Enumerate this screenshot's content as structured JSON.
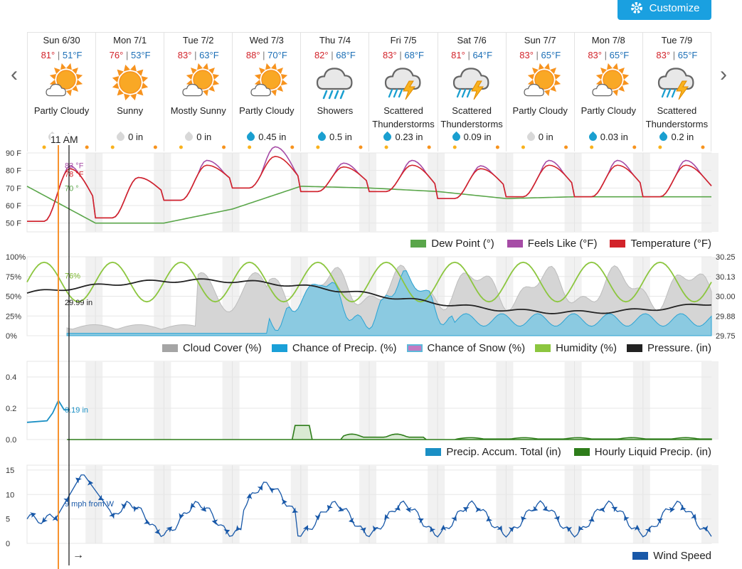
{
  "toolbar": {
    "customize_label": "Customize",
    "customize_icon": "gear-icon"
  },
  "nav": {
    "prev_glyph": "‹",
    "next_glyph": "›"
  },
  "days": [
    {
      "date": "Sun 6/30",
      "hi": "81°",
      "lo": "51°F",
      "icon": "partly-cloudy-icon",
      "cond1": "Partly Cloudy",
      "cond2": "",
      "precip": "0 in",
      "wet": false
    },
    {
      "date": "Mon 7/1",
      "hi": "76°",
      "lo": "53°F",
      "icon": "sunny-icon",
      "cond1": "Sunny",
      "cond2": "",
      "precip": "",
      "wet": false
    },
    {
      "date": "Tue 7/2",
      "hi": "83°",
      "lo": "63°F",
      "icon": "partly-cloudy-icon",
      "cond1": "Mostly Sunny",
      "cond2": "",
      "precip": "0 in",
      "wet": false
    },
    {
      "date": "Wed 7/3",
      "hi": "88°",
      "lo": "70°F",
      "icon": "partly-cloudy-icon",
      "cond1": "Partly Cloudy",
      "cond2": "",
      "precip": "0.45 in",
      "wet": true
    },
    {
      "date": "Thu 7/4",
      "hi": "82°",
      "lo": "68°F",
      "icon": "rain-icon",
      "cond1": "Showers",
      "cond2": "",
      "precip": "0.5 in",
      "wet": true
    },
    {
      "date": "Fri 7/5",
      "hi": "83°",
      "lo": "68°F",
      "icon": "thunderstorm-icon",
      "cond1": "Scattered",
      "cond2": "Thunderstorms",
      "precip": "0.23 in",
      "wet": true
    },
    {
      "date": "Sat 7/6",
      "hi": "81°",
      "lo": "64°F",
      "icon": "thunderstorm-icon",
      "cond1": "Scattered",
      "cond2": "Thunderstorms",
      "precip": "0.09 in",
      "wet": true
    },
    {
      "date": "Sun 7/7",
      "hi": "83°",
      "lo": "65°F",
      "icon": "partly-cloudy-icon",
      "cond1": "Partly Cloudy",
      "cond2": "",
      "precip": "0 in",
      "wet": false
    },
    {
      "date": "Mon 7/8",
      "hi": "83°",
      "lo": "65°F",
      "icon": "partly-cloudy-icon",
      "cond1": "Partly Cloudy",
      "cond2": "",
      "precip": "0.03 in",
      "wet": true
    },
    {
      "date": "Tue 7/9",
      "hi": "83°",
      "lo": "65°F",
      "icon": "thunderstorm-icon",
      "cond1": "Scattered",
      "cond2": "Thunderstorms",
      "precip": "0.2 in",
      "wet": true
    }
  ],
  "cursor": {
    "time": "11 AM",
    "arrow": "→"
  },
  "chart_data": [
    {
      "type": "line",
      "ylim": [
        45,
        90
      ],
      "yticks": [
        "90 F",
        "80 F",
        "70 F",
        "60 F",
        "50 F"
      ],
      "ytick_values": [
        90,
        80,
        70,
        60,
        50
      ],
      "colors": {
        "dew": "#5aa64a",
        "feels": "#a64ca6",
        "temp": "#d2232a"
      },
      "legend": [
        "Dew Point (°)",
        "Feels Like (°F)",
        "Temperature (°F)"
      ],
      "hover": {
        "feels": "83 °F",
        "temp": "78 °F",
        "dew": "70 °"
      },
      "hover_values": {
        "feels": 83,
        "temp": 78,
        "dew": 70
      },
      "temp_hi": [
        81,
        76,
        83,
        88,
        82,
        83,
        81,
        83,
        83,
        83
      ],
      "temp_lo": [
        51,
        53,
        63,
        70,
        68,
        68,
        64,
        65,
        65,
        65
      ],
      "dew": [
        71,
        50,
        50,
        58,
        71,
        70,
        68,
        64,
        65,
        65
      ]
    },
    {
      "type": "area",
      "ylim_left": [
        0,
        100
      ],
      "yticks_left": [
        "100%",
        "75%",
        "50%",
        "25%",
        "0%"
      ],
      "ylim_right": [
        29.75,
        30.25
      ],
      "yticks_right": [
        "30.25",
        "30.13",
        "30.00",
        "29.88",
        "29.75"
      ],
      "colors": {
        "cloud": "#cfcfcf",
        "precip": "#5db8d9",
        "snow": "#b06bb0",
        "humidity": "#8cc63f",
        "pressure": "#222222"
      },
      "legend": [
        "Cloud Cover (%)",
        "Chance of Precip. (%)",
        "Chance of Snow (%)",
        "Humidity (%)",
        "Pressure. (in)"
      ],
      "hover": {
        "humidity": "76%",
        "pressure": "29.99 in"
      },
      "hover_values": {
        "humidity": 76,
        "pressure": 29.99
      }
    },
    {
      "type": "area",
      "ylim": [
        0,
        0.5
      ],
      "yticks": [
        "0.4",
        "0.2",
        "0.0"
      ],
      "ytick_values": [
        0.4,
        0.2,
        0.0
      ],
      "colors": {
        "total": "#1a8fc4",
        "hourly": "#2e7d1a"
      },
      "legend": [
        "Precip. Accum. Total (in)",
        "Hourly Liquid Precip. (in)"
      ],
      "hover": {
        "total": "0.19 in"
      },
      "hover_values": {
        "total": 0.19
      }
    },
    {
      "type": "line",
      "ylim": [
        0,
        16
      ],
      "yticks": [
        "15",
        "10",
        "5",
        "0"
      ],
      "ytick_values": [
        15,
        10,
        5,
        0
      ],
      "colors": {
        "wind": "#1858a8"
      },
      "legend": [
        "Wind Speed"
      ],
      "hover": {
        "wind": "9 mph from W"
      },
      "hover_values": {
        "wind": 9
      }
    }
  ]
}
